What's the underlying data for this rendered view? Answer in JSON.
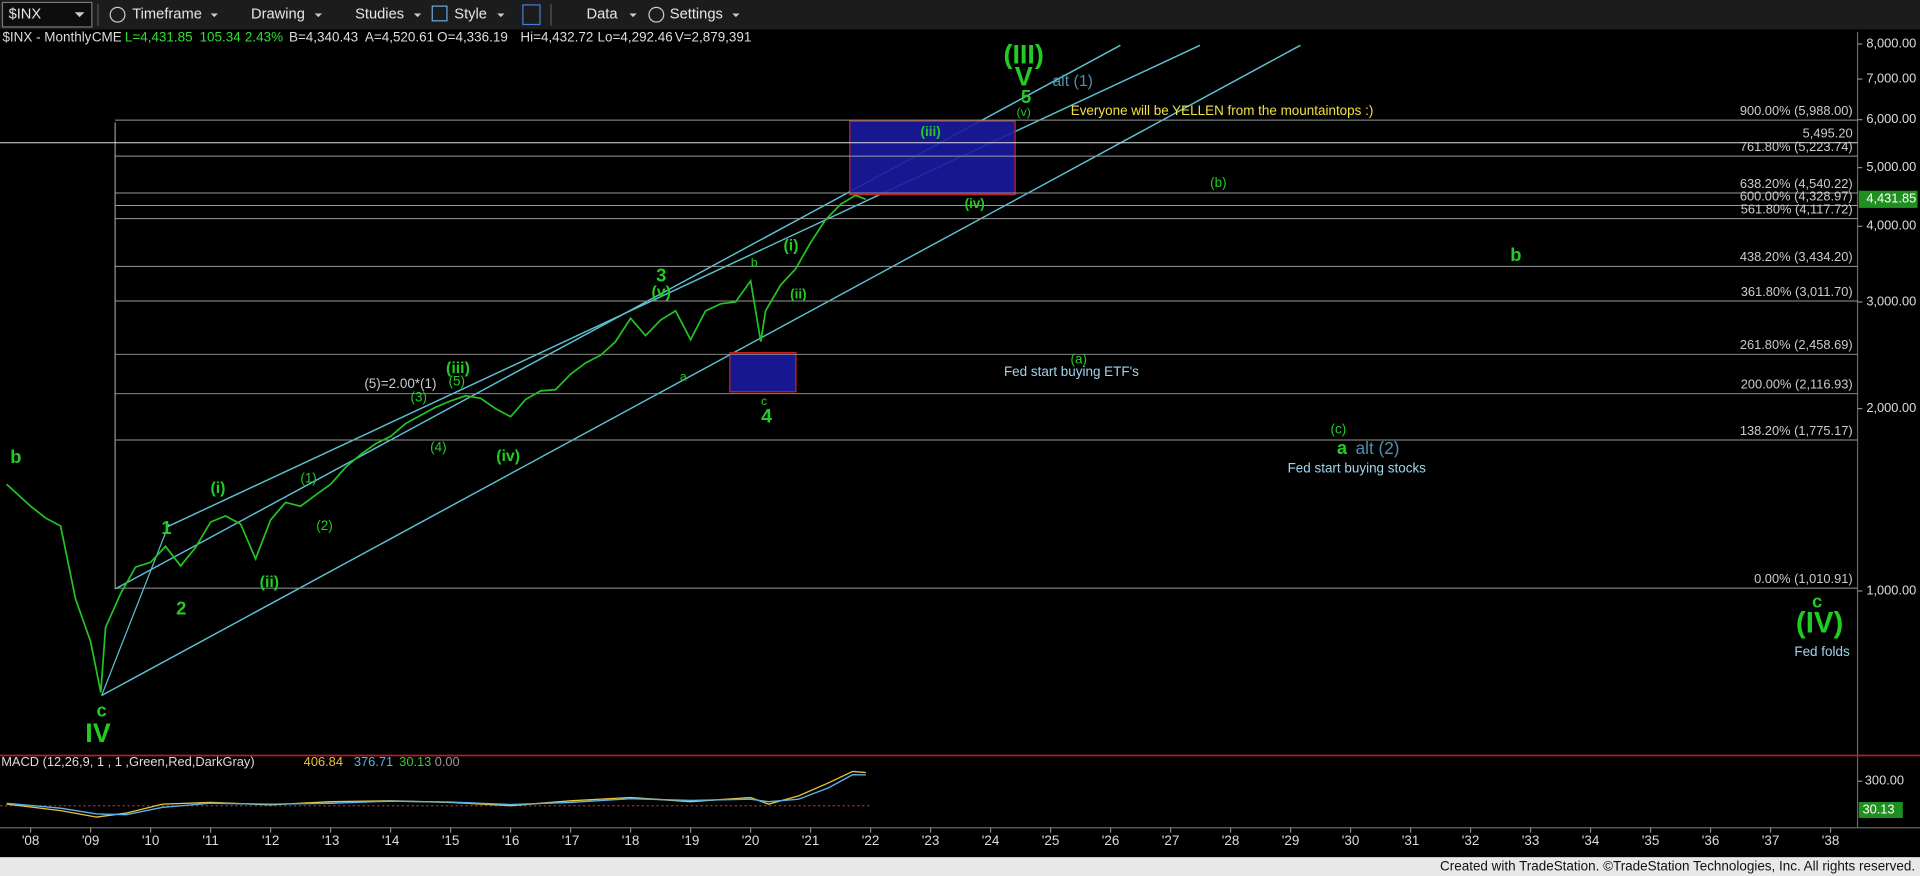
{
  "toolbar": {
    "symbol": "$INX",
    "items": [
      "Timeframe",
      "Drawing",
      "Studies",
      "Style",
      "Data",
      "Settings"
    ]
  },
  "header": {
    "symbol": "$INX - Monthly",
    "exchange": "CME",
    "quote": [
      "L=4,431.85",
      "105.34",
      "2.43%",
      "B=4,340.43",
      "A=4,520.61",
      "O=4,336.19",
      "Hi=4,432.72",
      "Lo=4,292.46",
      "V=2,879,391"
    ]
  },
  "chart_data": [
    {
      "type": "line",
      "color": "#22c422",
      "log_scale": true,
      "x": [
        2007.6,
        2008.0,
        2008.25,
        2008.5,
        2008.75,
        2009.0,
        2009.17,
        2009.25,
        2009.5,
        2009.75,
        2010.0,
        2010.25,
        2010.5,
        2010.75,
        2011.0,
        2011.25,
        2011.5,
        2011.75,
        2012.0,
        2012.25,
        2012.5,
        2012.75,
        2013.0,
        2013.25,
        2013.5,
        2013.75,
        2014.0,
        2014.25,
        2014.5,
        2014.75,
        2015.0,
        2015.25,
        2015.5,
        2015.75,
        2016.0,
        2016.25,
        2016.5,
        2016.75,
        2017.0,
        2017.25,
        2017.5,
        2017.75,
        2018.0,
        2018.25,
        2018.5,
        2018.75,
        2019.0,
        2019.25,
        2019.5,
        2019.75,
        2020.0,
        2020.17,
        2020.25,
        2020.5,
        2020.75,
        2021.0,
        2021.25,
        2021.5,
        2021.75,
        2021.92
      ],
      "values": [
        1500,
        1380,
        1320,
        1280,
        970,
        825,
        680,
        870,
        990,
        1095,
        1115,
        1185,
        1100,
        1180,
        1300,
        1330,
        1290,
        1130,
        1310,
        1400,
        1380,
        1440,
        1500,
        1600,
        1680,
        1750,
        1800,
        1890,
        1950,
        2010,
        2060,
        2100,
        2080,
        2000,
        1940,
        2070,
        2140,
        2150,
        2280,
        2380,
        2450,
        2580,
        2820,
        2640,
        2800,
        2900,
        2600,
        2900,
        2980,
        3000,
        3250,
        2580,
        2900,
        3200,
        3400,
        3760,
        4100,
        4350,
        4500,
        4431.85
      ],
      "xlim": [
        2007.49,
        2038.45
      ],
      "xticks": [
        {
          "value": 2008,
          "label": "'08"
        },
        {
          "value": 2009,
          "label": "'09"
        },
        {
          "value": 2010,
          "label": "'10"
        },
        {
          "value": 2011,
          "label": "'11"
        },
        {
          "value": 2012,
          "label": "'12"
        },
        {
          "value": 2013,
          "label": "'13"
        },
        {
          "value": 2014,
          "label": "'14"
        },
        {
          "value": 2015,
          "label": "'15"
        },
        {
          "value": 2016,
          "label": "'16"
        },
        {
          "value": 2017,
          "label": "'17"
        },
        {
          "value": 2018,
          "label": "'18"
        },
        {
          "value": 2019,
          "label": "'19"
        },
        {
          "value": 2020,
          "label": "'20"
        },
        {
          "value": 2021,
          "label": "'21"
        },
        {
          "value": 2022,
          "label": "'22"
        },
        {
          "value": 2023,
          "label": "'23"
        },
        {
          "value": 2024,
          "label": "'24"
        },
        {
          "value": 2025,
          "label": "'25"
        },
        {
          "value": 2026,
          "label": "'26"
        },
        {
          "value": 2027,
          "label": "'27"
        },
        {
          "value": 2028,
          "label": "'28"
        },
        {
          "value": 2029,
          "label": "'29"
        },
        {
          "value": 2030,
          "label": "'30"
        },
        {
          "value": 2031,
          "label": "'31"
        },
        {
          "value": 2032,
          "label": "'32"
        },
        {
          "value": 2033,
          "label": "'33"
        },
        {
          "value": 2034,
          "label": "'34"
        },
        {
          "value": 2035,
          "label": "'35"
        },
        {
          "value": 2036,
          "label": "'36"
        },
        {
          "value": 2037,
          "label": "'37"
        },
        {
          "value": 2038,
          "label": "'38"
        }
      ],
      "ylim": [
        540,
        8300
      ],
      "yticks": [
        {
          "value": 1000,
          "label": "1,000.00"
        },
        {
          "value": 2000,
          "label": "2,000.00"
        },
        {
          "value": 3000,
          "label": "3,000.00"
        },
        {
          "value": 4000,
          "label": "4,000.00"
        },
        {
          "value": 5000,
          "label": "5,000.00"
        },
        {
          "value": 6000,
          "label": "6,000.00"
        },
        {
          "value": 7000,
          "label": "7,000.00"
        },
        {
          "value": 8000,
          "label": "8,000.00"
        }
      ],
      "last_value": {
        "value": 4431.85,
        "label": "4,431.85"
      },
      "levels": [
        {
          "value": 5988,
          "label": "900.00% (5,988.00)"
        },
        {
          "value": 5495.2,
          "label": "5,495.20"
        },
        {
          "value": 5223.74,
          "label": "761.80% (5,223.74)"
        },
        {
          "value": 4540.22,
          "label": "638.20% (4,540.22)"
        },
        {
          "value": 4328.97,
          "label": "600.00% (4,328.97)"
        },
        {
          "value": 4117.72,
          "label": "561.80% (4,117.72)"
        },
        {
          "value": 3434.2,
          "label": "438.20% (3,434.20)"
        },
        {
          "value": 3011.7,
          "label": "361.80% (3,011.70)"
        },
        {
          "value": 2458.69,
          "label": "261.80% (2,458.69)"
        },
        {
          "value": 2116.93,
          "label": "200.00% (2,116.93)"
        },
        {
          "value": 1775.17,
          "label": "138.20% (1,775.17)"
        },
        {
          "value": 1010.91,
          "label": "0.00% (1,010.91)"
        }
      ],
      "annotations": [
        "b",
        "c",
        "IV",
        "1",
        "2",
        "(i)",
        "(ii)",
        "(1)",
        "(2)",
        "(3)",
        "(4)",
        "(5)",
        "(5)=2.00*(1)",
        "(iii)",
        "(iv)",
        "3",
        "(v)",
        "a",
        "b",
        "c",
        "4",
        "(i)",
        "(ii)",
        "(iii)",
        "(iv)",
        "(v)",
        "(III)",
        "V",
        "5",
        "alt (1)",
        "Everyone will be YELLEN from the mountaintops :)",
        "(b)",
        "b",
        "(a)",
        "Fed start buying ETF's",
        "(c)",
        "a",
        "alt (2)",
        "Fed start buying stocks",
        "c",
        "(IV)",
        "Fed folds"
      ]
    },
    {
      "type": "line",
      "title": "MACD (12,26,9, 1 , 1 ,Green,Red,DarkGray)",
      "x": [
        2007.6,
        2008.5,
        2009.1,
        2009.6,
        2010.2,
        2011.0,
        2012.0,
        2013.0,
        2014.0,
        2015.0,
        2016.0,
        2017.0,
        2018.0,
        2019.0,
        2020.0,
        2020.3,
        2020.8,
        2021.3,
        2021.7,
        2021.92
      ],
      "series": [
        {
          "color": "#e8c23a",
          "values": [
            20,
            -60,
            -140,
            -90,
            20,
            40,
            10,
            50,
            60,
            40,
            0,
            60,
            100,
            50,
            100,
            20,
            120,
            280,
            420,
            406.84
          ]
        },
        {
          "color": "#5ab4e6",
          "values": [
            30,
            -30,
            -100,
            -110,
            -20,
            30,
            20,
            30,
            55,
            45,
            15,
            40,
            85,
            65,
            80,
            50,
            80,
            220,
            380,
            376.71
          ]
        }
      ],
      "readout": [
        406.84,
        376.71,
        30.13,
        {
          "value": 0,
          "label": "0.00"
        }
      ],
      "xlim": [
        2007.49,
        2038.45
      ],
      "ylim": [
        -210,
        540
      ],
      "yticks": [
        {
          "value": 300,
          "label": "300.00"
        }
      ],
      "last_value": {
        "value": 30.13,
        "label": "30.13"
      }
    }
  ],
  "footer": "Created with TradeStation. ©TradeStation Technologies, Inc. All rights reserved."
}
